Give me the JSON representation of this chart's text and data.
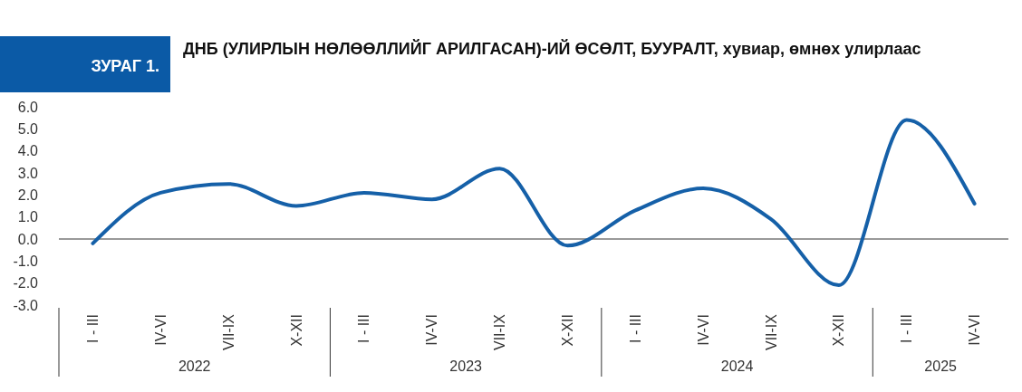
{
  "chart_data": {
    "type": "line",
    "title": "ДНБ (УЛИРЛЫН НӨЛӨӨЛЛИЙГ АРИЛГАСАН)-ИЙ ӨСӨЛТ, БУУРАЛТ, хувиар, өмнөх улирлаас",
    "categories": [
      "I - III",
      "IV-VI",
      "VII-IX",
      "X-XII",
      "I - III",
      "IV-VI",
      "VII-IX",
      "X-XII",
      "I - III",
      "IV-VI",
      "VII-IX",
      "X-XII",
      "I - III",
      "IV-VI"
    ],
    "series": [
      {
        "color": "#1560a8",
        "values": [
          -0.2,
          2.1,
          2.5,
          1.5,
          2.1,
          1.8,
          3.2,
          -0.3,
          1.3,
          2.3,
          0.9,
          -2.1,
          5.4,
          1.6
        ]
      }
    ],
    "ylim": [
      -3,
      6
    ],
    "yticks": [
      {
        "value": 6,
        "label": "6.0"
      },
      {
        "value": 5,
        "label": "5.0"
      },
      {
        "value": 4,
        "label": "4.0"
      },
      {
        "value": 3,
        "label": "3.0"
      },
      {
        "value": 2,
        "label": "2.0"
      },
      {
        "value": 1,
        "label": "1.0"
      },
      {
        "value": 0,
        "label": "0.0"
      },
      {
        "value": -1,
        "label": "-1.0"
      },
      {
        "value": -2,
        "label": "-2.0"
      },
      {
        "value": -3,
        "label": "-3.0"
      }
    ],
    "annotations": [
      "ЗУРАГ 1.",
      "2022",
      "2023",
      "2024",
      "2025"
    ],
    "marker": "none"
  }
}
